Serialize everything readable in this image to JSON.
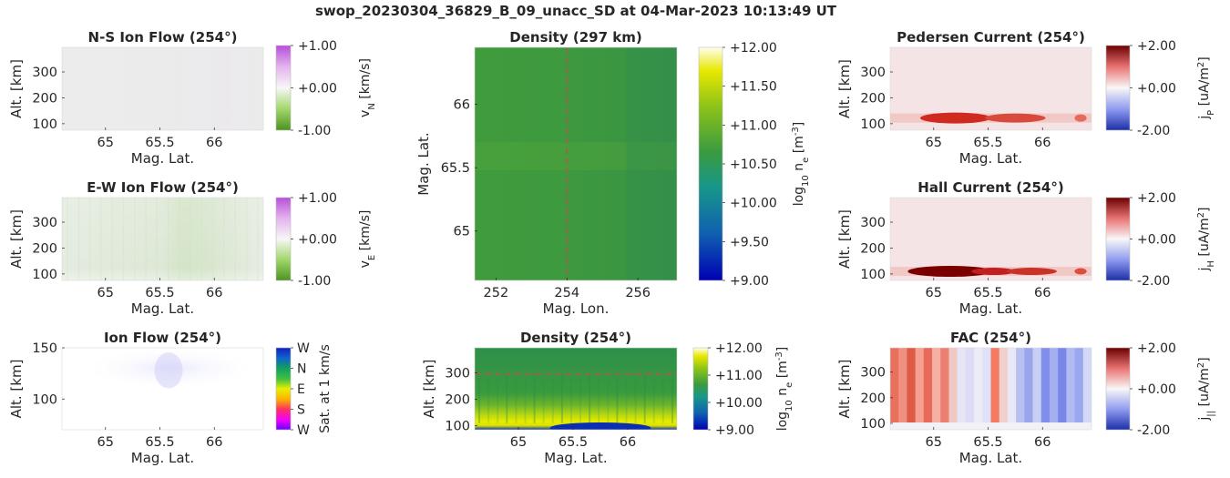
{
  "figure_title": "swop_20230304_36829_B_09_unacc_SD at 04-Mar-2023 10:13:49 UT",
  "chart_data": [
    {
      "id": "ns_flow",
      "type": "heatmap",
      "title": "N-S Ion Flow (254°)",
      "xlabel": "Mag. Lat.",
      "ylabel": "Alt. [km]",
      "xlim": [
        64.6,
        66.45
      ],
      "ylim": [
        75,
        395
      ],
      "xticks": [
        {
          "v": 65,
          "label": "65"
        },
        {
          "v": 65.5,
          "label": "65.5"
        },
        {
          "v": 66,
          "label": "66"
        }
      ],
      "yticks": [
        {
          "v": 100,
          "label": "100"
        },
        {
          "v": 200,
          "label": "200"
        },
        {
          "v": 300,
          "label": "300"
        }
      ],
      "colorbar": {
        "label": "v_N [km/s]",
        "colormap": "purple-white-green",
        "range": [
          -1,
          1
        ],
        "ticks": [
          {
            "v": 1,
            "label": "+1.00"
          },
          {
            "v": 0,
            "label": "+0.00"
          },
          {
            "v": -1,
            "label": "-1.00"
          }
        ]
      }
    },
    {
      "id": "ew_flow",
      "type": "heatmap",
      "title": "E-W Ion Flow (254°)",
      "xlabel": "Mag. Lat.",
      "ylabel": "Alt. [km]",
      "xlim": [
        64.6,
        66.45
      ],
      "ylim": [
        75,
        395
      ],
      "xticks": [
        {
          "v": 65,
          "label": "65"
        },
        {
          "v": 65.5,
          "label": "65.5"
        },
        {
          "v": 66,
          "label": "66"
        }
      ],
      "yticks": [
        {
          "v": 100,
          "label": "100"
        },
        {
          "v": 200,
          "label": "200"
        },
        {
          "v": 300,
          "label": "300"
        }
      ],
      "colorbar": {
        "label": "v_E [km/s]",
        "colormap": "purple-white-green",
        "range": [
          -1,
          1
        ],
        "ticks": [
          {
            "v": 1,
            "label": "+1.00"
          },
          {
            "v": 0,
            "label": "+0.00"
          },
          {
            "v": -1,
            "label": "-1.00"
          }
        ]
      }
    },
    {
      "id": "ion_flow",
      "type": "heatmap",
      "title": "Ion Flow (254°)",
      "xlabel": "Mag. Lat.",
      "ylabel": "Alt. [km]",
      "xlim": [
        64.6,
        66.45
      ],
      "ylim": [
        70,
        150
      ],
      "xticks": [
        {
          "v": 65,
          "label": "65"
        },
        {
          "v": 65.5,
          "label": "65.5"
        },
        {
          "v": 66,
          "label": "66"
        }
      ],
      "yticks": [
        {
          "v": 100,
          "label": "100"
        },
        {
          "v": 150,
          "label": "150"
        }
      ],
      "colorbar": {
        "label": "Sat. at 1 km/s",
        "colormap": "direction",
        "ticks": [
          "W",
          "N",
          "E",
          "S",
          "W"
        ]
      }
    },
    {
      "id": "density_map",
      "type": "heatmap",
      "title": "Density (297 km)",
      "xlabel": "Mag. Lon.",
      "ylabel": "Mag. Lat.",
      "xlim": [
        251.4,
        257.1
      ],
      "ylim": [
        64.61,
        66.45
      ],
      "xticks": [
        {
          "v": 252,
          "label": "252"
        },
        {
          "v": 254,
          "label": "254"
        },
        {
          "v": 256,
          "label": "256"
        }
      ],
      "yticks": [
        {
          "v": 65,
          "label": "65"
        },
        {
          "v": 65.5,
          "label": "65.5"
        },
        {
          "v": 66,
          "label": "66"
        }
      ],
      "reference_line": {
        "axis": "x",
        "value": 254,
        "style": "dashed",
        "color": "#c0504d"
      },
      "colorbar": {
        "label": "log10 ne [m-3]",
        "colormap": "blue-green-yellow",
        "range": [
          9,
          12
        ],
        "ticks": [
          {
            "v": 12,
            "label": "+12.00"
          },
          {
            "v": 11.5,
            "label": "+11.50"
          },
          {
            "v": 11,
            "label": "+11.00"
          },
          {
            "v": 10.5,
            "label": "+10.50"
          },
          {
            "v": 10,
            "label": "+10.00"
          },
          {
            "v": 9.5,
            "label": "+9.50"
          },
          {
            "v": 9,
            "label": "+9.00"
          }
        ]
      }
    },
    {
      "id": "density_profile",
      "type": "heatmap",
      "title": "Density (254°)",
      "xlabel": "Mag. Lat.",
      "ylabel": "Alt. [km]",
      "xlim": [
        64.6,
        66.45
      ],
      "ylim": [
        85,
        395
      ],
      "xticks": [
        {
          "v": 65,
          "label": "65"
        },
        {
          "v": 65.5,
          "label": "65.5"
        },
        {
          "v": 66,
          "label": "66"
        }
      ],
      "yticks": [
        {
          "v": 100,
          "label": "100"
        },
        {
          "v": 200,
          "label": "200"
        },
        {
          "v": 300,
          "label": "300"
        }
      ],
      "reference_line": {
        "axis": "y",
        "value": 297,
        "style": "dashed",
        "color": "#c0504d"
      },
      "colorbar": {
        "label": "log10 ne [m-3]",
        "colormap": "blue-green-yellow",
        "range": [
          9,
          12
        ],
        "ticks": [
          {
            "v": 12,
            "label": "+12.00"
          },
          {
            "v": 11,
            "label": "+11.00"
          },
          {
            "v": 10,
            "label": "+10.00"
          },
          {
            "v": 9,
            "label": "+9.00"
          }
        ]
      }
    },
    {
      "id": "pedersen",
      "type": "heatmap",
      "title": "Pedersen Current (254°)",
      "xlabel": "Mag. Lat.",
      "ylabel": "Alt. [km]",
      "xlim": [
        64.6,
        66.45
      ],
      "ylim": [
        75,
        395
      ],
      "xticks": [
        {
          "v": 65,
          "label": "65"
        },
        {
          "v": 65.5,
          "label": "65.5"
        },
        {
          "v": 66,
          "label": "66"
        }
      ],
      "yticks": [
        {
          "v": 100,
          "label": "100"
        },
        {
          "v": 200,
          "label": "200"
        },
        {
          "v": 300,
          "label": "300"
        }
      ],
      "colorbar": {
        "label": "jP [uA/m2]",
        "colormap": "blue-white-red",
        "range": [
          -2,
          2
        ],
        "ticks": [
          {
            "v": 2,
            "label": "+2.00"
          },
          {
            "v": 0,
            "label": "+0.00"
          },
          {
            "v": -2,
            "label": "-2.00"
          }
        ]
      }
    },
    {
      "id": "hall",
      "type": "heatmap",
      "title": "Hall Current (254°)",
      "xlabel": "Mag. Lat.",
      "ylabel": "Alt. [km]",
      "xlim": [
        64.6,
        66.45
      ],
      "ylim": [
        75,
        395
      ],
      "xticks": [
        {
          "v": 65,
          "label": "65"
        },
        {
          "v": 65.5,
          "label": "65.5"
        },
        {
          "v": 66,
          "label": "66"
        }
      ],
      "yticks": [
        {
          "v": 100,
          "label": "100"
        },
        {
          "v": 200,
          "label": "200"
        },
        {
          "v": 300,
          "label": "300"
        }
      ],
      "colorbar": {
        "label": "jH [uA/m2]",
        "colormap": "blue-white-red",
        "range": [
          -2,
          2
        ],
        "ticks": [
          {
            "v": 2,
            "label": "+2.00"
          },
          {
            "v": 0,
            "label": "+0.00"
          },
          {
            "v": -2,
            "label": "-2.00"
          }
        ]
      }
    },
    {
      "id": "fac",
      "type": "heatmap",
      "title": "FAC (254°)",
      "xlabel": "Mag. Lat.",
      "ylabel": "Alt. [km]",
      "xlim": [
        64.6,
        66.45
      ],
      "ylim": [
        75,
        395
      ],
      "xticks": [
        {
          "v": 65,
          "label": "65"
        },
        {
          "v": 65.5,
          "label": "65.5"
        },
        {
          "v": 66,
          "label": "66"
        }
      ],
      "yticks": [
        {
          "v": 100,
          "label": "100"
        },
        {
          "v": 200,
          "label": "200"
        },
        {
          "v": 300,
          "label": "300"
        }
      ],
      "colorbar": {
        "label": "j|| [uA/m2]",
        "colormap": "blue-white-red",
        "range": [
          -2,
          2
        ],
        "ticks": [
          {
            "v": 2,
            "label": "+2.00"
          },
          {
            "v": 0,
            "label": "+0.00"
          },
          {
            "v": -2,
            "label": "-2.00"
          }
        ]
      }
    }
  ]
}
